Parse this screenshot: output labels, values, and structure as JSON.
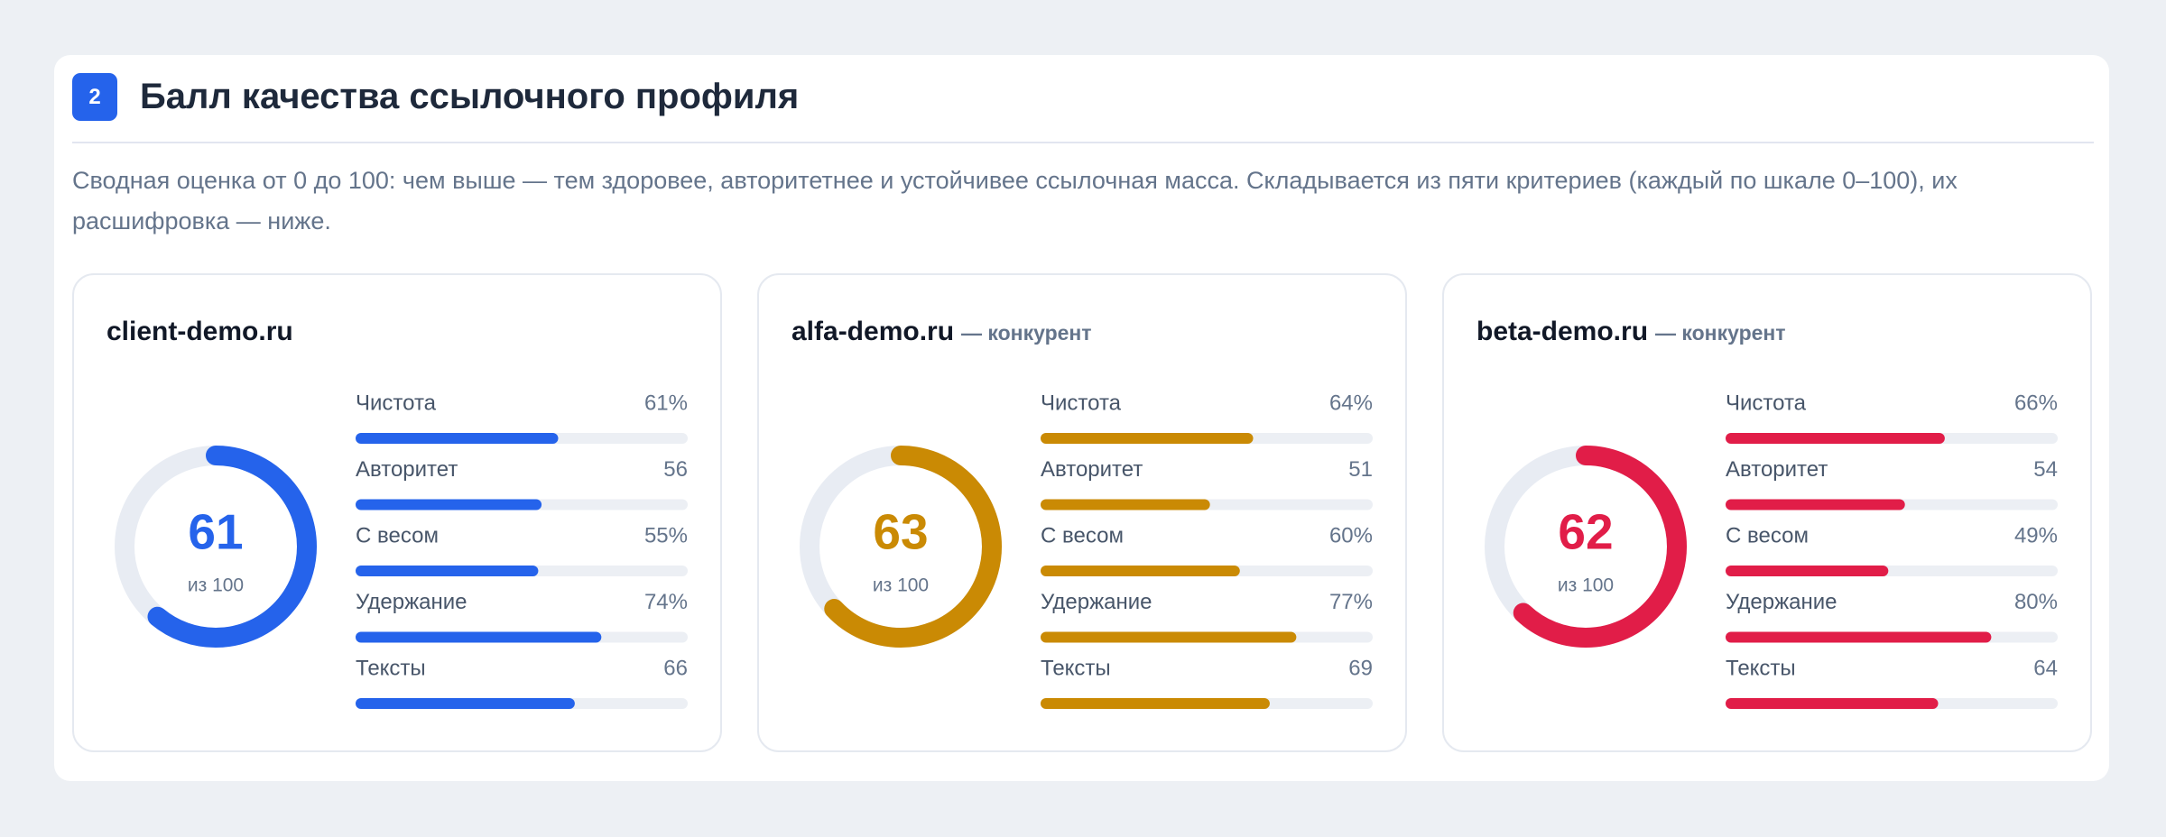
{
  "header": {
    "badge": "2",
    "title": "Балл качества ссылочного профиля"
  },
  "description": "Сводная оценка от 0 до 100: чем выше — тем здоровее, авторитетнее и устойчивее ссылочная масса. Складывается из пяти критериев (каждый по шкале 0–100), их расшифровка — ниже.",
  "value_range": [
    0,
    100
  ],
  "cards": [
    {
      "name": "client-demo.ru",
      "score": 61,
      "score_label": "из 100",
      "color": "#2563eb",
      "metrics": {
        "labels": [
          "Чистота",
          "Авторитет",
          "С весом",
          "Удержание",
          "Тексты"
        ],
        "values": [
          61,
          56,
          55,
          74,
          66
        ],
        "value_labels": [
          "61%",
          "56",
          "55%",
          "74%",
          "66"
        ]
      }
    },
    {
      "name": "alfa-demo.ru",
      "suffix": "— конкурент",
      "score": 63,
      "score_label": "из 100",
      "color": "#ca8a04",
      "metrics": {
        "labels": [
          "Чистота",
          "Авторитет",
          "С весом",
          "Удержание",
          "Тексты"
        ],
        "values": [
          64,
          51,
          60,
          77,
          69
        ],
        "value_labels": [
          "64%",
          "51",
          "60%",
          "77%",
          "69"
        ]
      }
    },
    {
      "name": "beta-demo.ru",
      "suffix": "— конкурент",
      "score": 62,
      "score_label": "из 100",
      "color": "#e11d48",
      "metrics": {
        "labels": [
          "Чистота",
          "Авторитет",
          "С весом",
          "Удержание",
          "Тексты"
        ],
        "values": [
          66,
          54,
          49,
          80,
          64
        ],
        "value_labels": [
          "66%",
          "54",
          "49%",
          "80%",
          "64"
        ]
      }
    }
  ]
}
